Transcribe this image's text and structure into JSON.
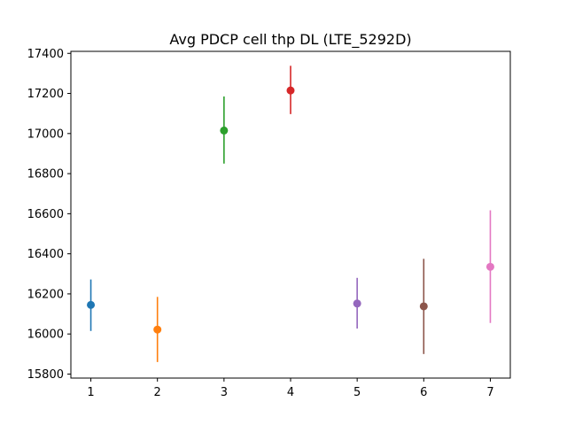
{
  "chart_data": {
    "type": "scatter",
    "title": "Avg PDCP cell thp DL (LTE_5292D)",
    "xlabel": "",
    "ylabel": "",
    "xlim": [
      0.7,
      7.3
    ],
    "ylim": [
      15780,
      17410
    ],
    "x_ticks": [
      1,
      2,
      3,
      4,
      5,
      6,
      7
    ],
    "y_ticks": [
      15800,
      16000,
      16200,
      16400,
      16600,
      16800,
      17000,
      17200,
      17400
    ],
    "grid": false,
    "points": [
      {
        "x": 1,
        "y": 16145,
        "low": 16015,
        "high": 16272,
        "color": "#1f77b4"
      },
      {
        "x": 2,
        "y": 16022,
        "low": 15860,
        "high": 16185,
        "color": "#ff7f0e"
      },
      {
        "x": 3,
        "y": 17015,
        "low": 16850,
        "high": 17185,
        "color": "#2ca02c"
      },
      {
        "x": 4,
        "y": 17215,
        "low": 17097,
        "high": 17338,
        "color": "#d62728"
      },
      {
        "x": 5,
        "y": 16152,
        "low": 16027,
        "high": 16280,
        "color": "#9467bd"
      },
      {
        "x": 6,
        "y": 16138,
        "low": 15900,
        "high": 16375,
        "color": "#8c564b"
      },
      {
        "x": 7,
        "y": 16335,
        "low": 16055,
        "high": 16617,
        "color": "#e377c2"
      }
    ]
  }
}
